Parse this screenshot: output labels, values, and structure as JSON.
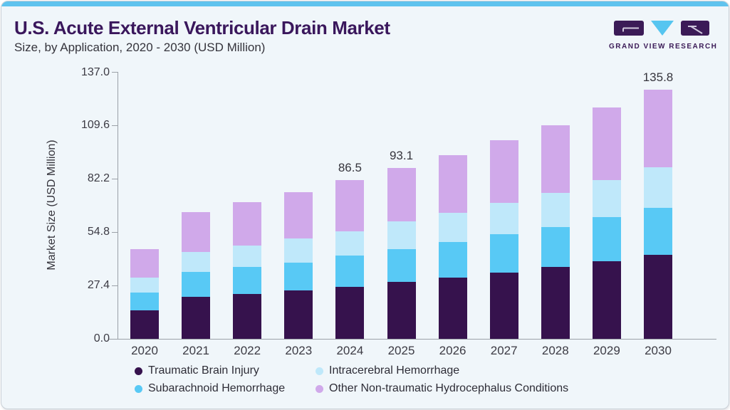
{
  "page": {
    "top_strip_color": "#5fc3ee",
    "background_color": "#f0f6fa",
    "accent_purple": "#3a175c"
  },
  "header": {
    "title": "U.S. Acute External Ventricular Drain Market",
    "subtitle": "Size, by Application, 2020 - 2030 (USD Million)"
  },
  "logo": {
    "caption": "GRAND VIEW RESEARCH",
    "purple": "#3b1b57",
    "blue": "#56c5f0",
    "icon_names": [
      "g-block-icon",
      "v-triangle-icon",
      "r-block-icon"
    ]
  },
  "chart_data": {
    "type": "bar",
    "stacked": true,
    "title": "U.S. Acute External Ventricular Drain Market Size, by Application, 2020 - 2030 (USD Million)",
    "xlabel": "",
    "ylabel": "Market Size (USD Million)",
    "ylim": [
      0,
      137.0
    ],
    "yticks": [
      "0.0",
      "27.4",
      "54.8",
      "82.2",
      "109.6",
      "137.0"
    ],
    "grid": false,
    "legend_position": "bottom",
    "categories": [
      "2020",
      "2021",
      "2022",
      "2023",
      "2024",
      "2025",
      "2026",
      "2027",
      "2028",
      "2029",
      "2030"
    ],
    "series": [
      {
        "name": "Traumatic Brain Injury",
        "color": "#36124d",
        "values": [
          15.4,
          23.0,
          24.6,
          26.4,
          28.4,
          31.0,
          33.2,
          36.1,
          39.1,
          42.3,
          45.8
        ]
      },
      {
        "name": "Subarachnoid Hemorrhage",
        "color": "#58c9f5",
        "values": [
          9.8,
          13.4,
          14.7,
          15.2,
          17.1,
          18.0,
          19.4,
          20.8,
          21.9,
          23.9,
          25.6
        ]
      },
      {
        "name": "Intracerebral Hemorrhage",
        "color": "#bfe8fa",
        "values": [
          8.2,
          11.0,
          11.6,
          13.2,
          12.9,
          14.9,
          15.9,
          17.3,
          18.4,
          20.3,
          22.0
        ]
      },
      {
        "name": "Other Non-traumatic Hydrocephalus Conditions",
        "color": "#d0a9ea",
        "values": [
          15.4,
          21.8,
          23.5,
          25.2,
          28.1,
          29.2,
          31.6,
          34.0,
          36.9,
          39.4,
          42.4
        ]
      }
    ],
    "totals": [
      48.8,
      69.2,
      74.4,
      80.0,
      86.5,
      93.1,
      100.1,
      108.2,
      116.3,
      125.9,
      135.8
    ],
    "data_labels": {
      "2024": "86.5",
      "2025": "93.1",
      "2030": "135.8"
    }
  },
  "legend": {
    "items": [
      {
        "label": "Traumatic Brain Injury",
        "color": "#36124d"
      },
      {
        "label": "Intracerebral Hemorrhage",
        "color": "#bfe8fa"
      },
      {
        "label": "Subarachnoid Hemorrhage",
        "color": "#58c9f5"
      },
      {
        "label": "Other Non-traumatic Hydrocephalus Conditions",
        "color": "#d0a9ea"
      }
    ]
  }
}
